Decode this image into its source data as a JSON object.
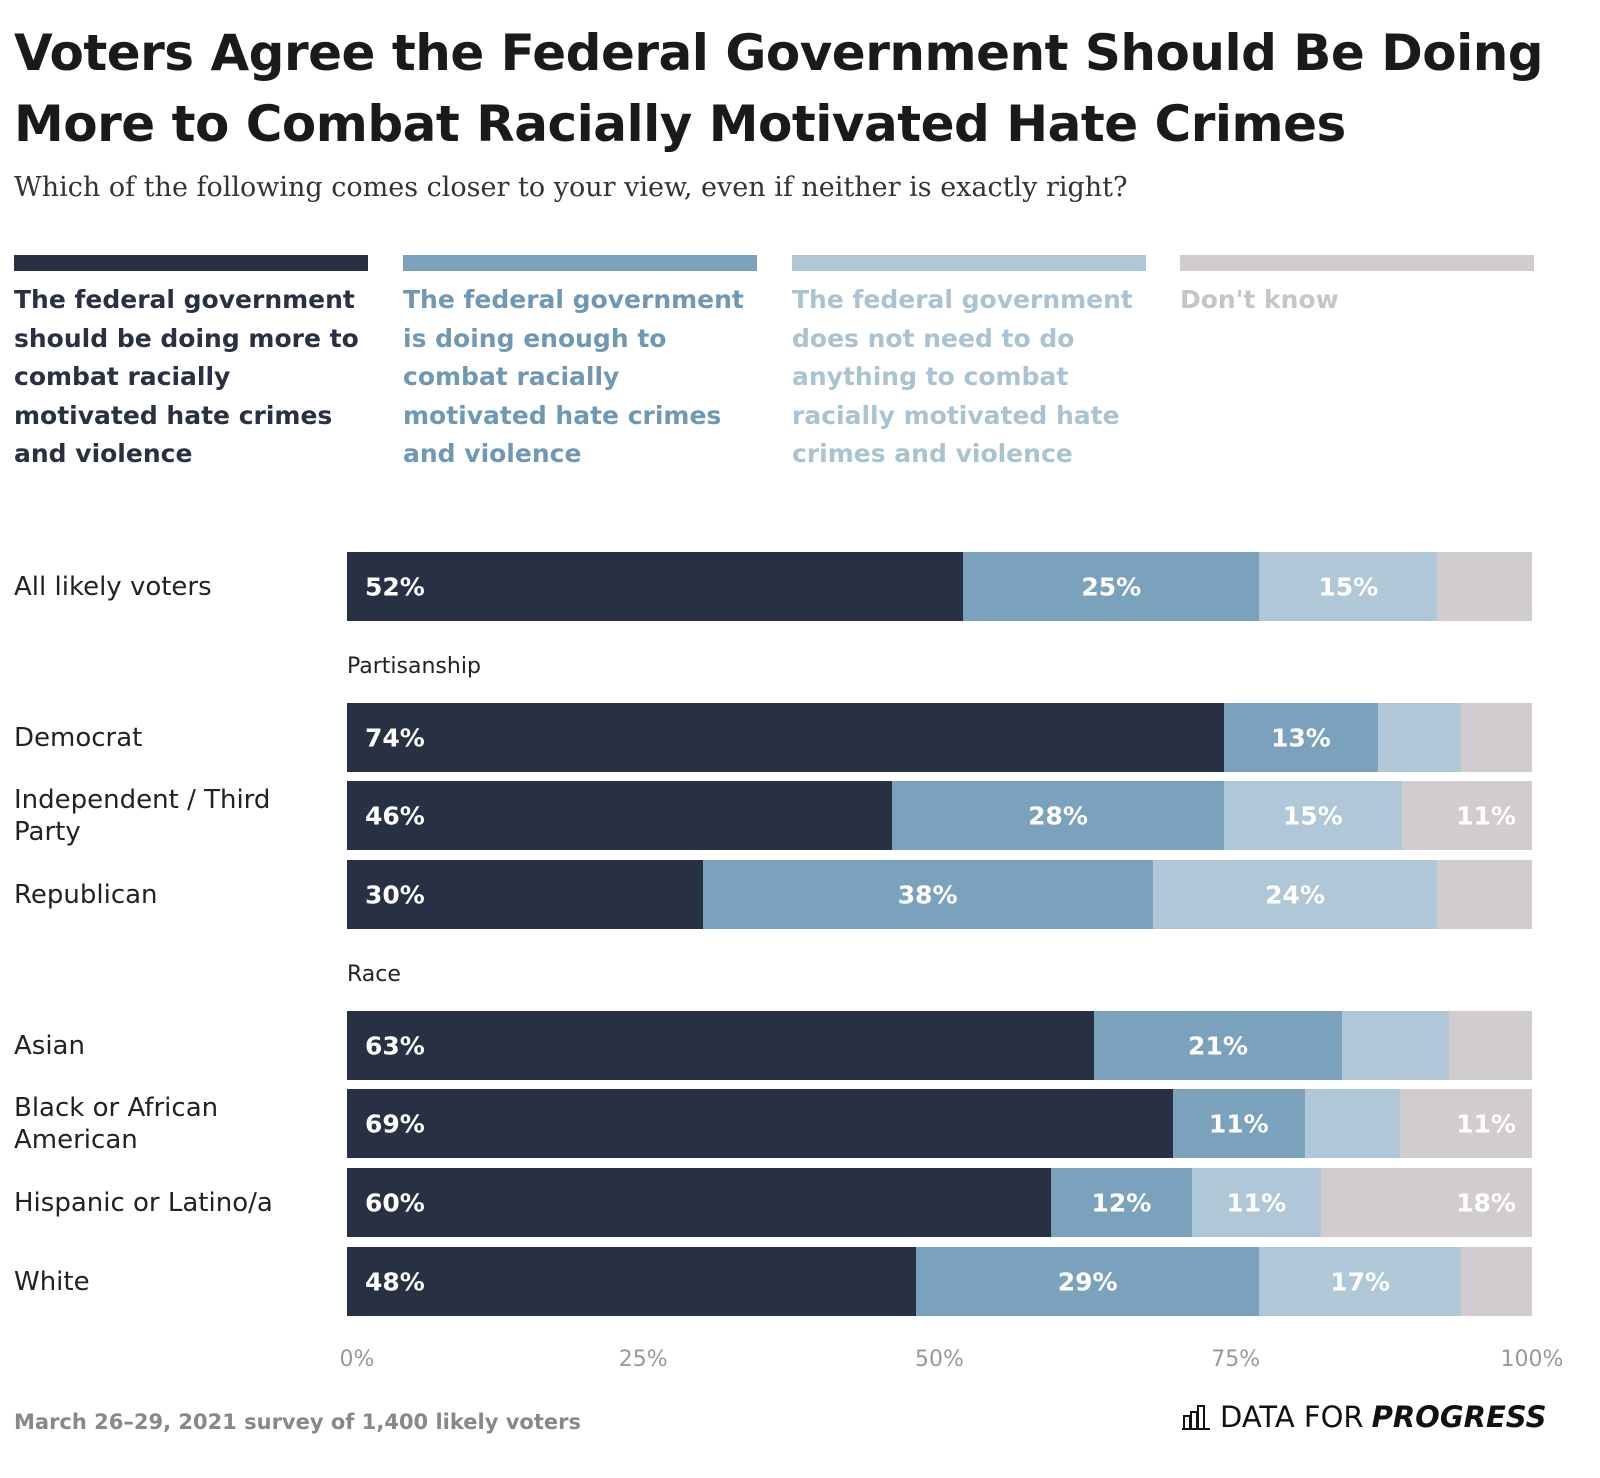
{
  "chart_data": {
    "type": "bar",
    "orientation": "horizontal-stacked",
    "title": "Voters Agree the Federal Government Should Be Doing More to Combat Racially Motivated Hate Crimes",
    "subtitle": "Which of the following comes closer to your view, even if neither is exactly right?",
    "legend": [
      {
        "name": "The federal government should be doing more to combat racially motivated hate crimes and violence",
        "color": "#283044"
      },
      {
        "name": "The federal government is doing enough to combat racially motivated hate crimes and violence",
        "color": "#7ba2bd"
      },
      {
        "name": "The federal government does not need to do anything to combat racially motivated hate crimes and violence",
        "color": "#afc7d6"
      },
      {
        "name": "Don't know",
        "color": "#d0ccd0"
      }
    ],
    "legend_placement": "top",
    "rows": [
      {
        "group": "",
        "category": "All likely voters",
        "values": [
          52,
          25,
          15,
          8
        ]
      },
      {
        "group": "Partisanship",
        "category": "Democrat",
        "values": [
          74,
          13,
          7,
          6
        ]
      },
      {
        "group": "Partisanship",
        "category": "Independent / Third Party",
        "values": [
          46,
          28,
          15,
          11
        ]
      },
      {
        "group": "Partisanship",
        "category": "Republican",
        "values": [
          30,
          38,
          24,
          8
        ]
      },
      {
        "group": "Race",
        "category": "Asian",
        "values": [
          63,
          21,
          9,
          7
        ]
      },
      {
        "group": "Race",
        "category": "Black or African American",
        "values": [
          69,
          11,
          8,
          11
        ]
      },
      {
        "group": "Race",
        "category": "Hispanic or Latino/a",
        "values": [
          60,
          12,
          11,
          18
        ]
      },
      {
        "group": "Race",
        "category": "White",
        "values": [
          48,
          29,
          17,
          6
        ]
      }
    ],
    "groups": [
      "Partisanship",
      "Race"
    ],
    "xlim": [
      0,
      100
    ],
    "xticks": [
      "0%",
      "25%",
      "50%",
      "75%",
      "100%"
    ],
    "grid": false
  },
  "footer": "March 26–29, 2021 survey of 1,400 likely voters",
  "logo": {
    "text_light": "DATA FOR",
    "text_bold": "PROGRESS",
    "icon": "bar-chart-icon"
  }
}
